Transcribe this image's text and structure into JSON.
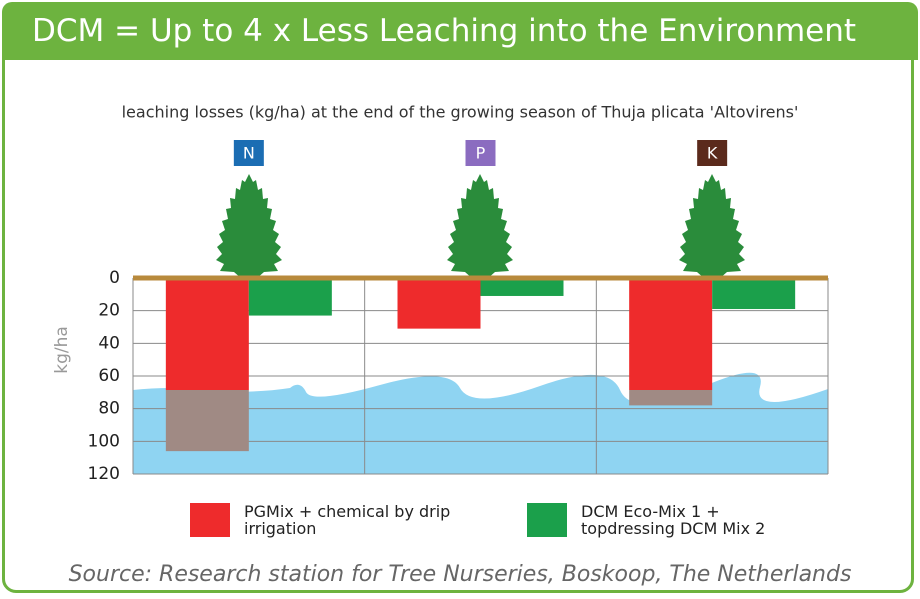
{
  "chart_data": {
    "type": "bar",
    "title": "DCM = Up to 4 x Less Leaching into the Environment",
    "subtitle": "leaching losses (kg/ha) at the end of the growing season of Thuja plicata 'Altovirens'",
    "y_label": "kg/ha",
    "categories": [
      "N",
      "P",
      "K"
    ],
    "category_colors": [
      "#1b6db3",
      "#8b6cc0",
      "#5b2a1c"
    ],
    "series": [
      {
        "name": "PGMix + chemical by drip irrigation",
        "color": "#ee2b2c",
        "values": [
          106,
          31,
          78
        ]
      },
      {
        "name": "DCM Eco-Mix 1 + topdressing DCM Mix 2",
        "color": "#1ba04b",
        "values": [
          23,
          11,
          19
        ]
      }
    ],
    "ylim": [
      0,
      120
    ],
    "yticks": [
      0,
      20,
      40,
      60,
      80,
      100,
      120
    ],
    "y_reversed": true,
    "grid": true,
    "source": "Source: Research station for Tree Nurseries, Boskoop, The Netherlands"
  }
}
